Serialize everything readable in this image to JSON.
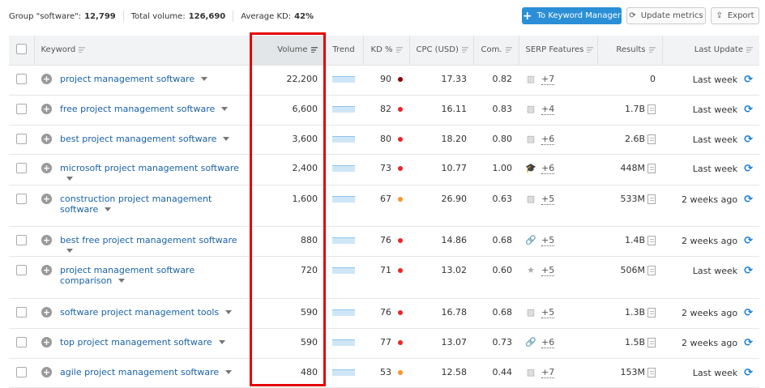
{
  "stats": {
    "group_label": "Group \"software\":",
    "group_value": "12,799",
    "total_label": "Total volume:",
    "total_value": "126,690",
    "kd_label": "Average KD:",
    "kd_value": "42%"
  },
  "toolbar": {
    "keyword_manager": "To Keyword Manager",
    "update_metrics": "Update metrics",
    "export": "Export"
  },
  "columns": {
    "keyword": "Keyword",
    "volume": "Volume",
    "trend": "Trend",
    "kd": "KD %",
    "cpc": "CPC (USD)",
    "com": "Com.",
    "serp": "SERP Features",
    "results": "Results",
    "last_update": "Last Update"
  },
  "colors": {
    "kd_very_hard": "#8b0000",
    "kd_hard": "#e8262b",
    "kd_medium": "#f7962d",
    "link": "#1a62a8",
    "primary": "#2a8fd6"
  },
  "rows": [
    {
      "keyword": "project management software",
      "volume": "22,200",
      "kd": "90",
      "kd_color": "#8b0000",
      "cpc": "17.33",
      "com": "0.82",
      "serp_icon": "carousel",
      "serp_more": "+7",
      "results": "0",
      "last_update": "Last week"
    },
    {
      "keyword": "free project management software",
      "volume": "6,600",
      "kd": "82",
      "kd_color": "#e8262b",
      "cpc": "16.11",
      "com": "0.83",
      "serp_icon": "image",
      "serp_more": "+4",
      "results": "1.7B",
      "last_update": "Last week"
    },
    {
      "keyword": "best project management software",
      "volume": "3,600",
      "kd": "80",
      "kd_color": "#e8262b",
      "cpc": "18.20",
      "com": "0.80",
      "serp_icon": "image",
      "serp_more": "+6",
      "results": "2.6B",
      "last_update": "Last week"
    },
    {
      "keyword": "microsoft project management software",
      "volume": "2,400",
      "kd": "73",
      "kd_color": "#e8262b",
      "cpc": "10.77",
      "com": "1.00",
      "serp_icon": "graduation-cap",
      "serp_more": "+6",
      "results": "448M",
      "last_update": "Last week"
    },
    {
      "keyword": "construction project management software",
      "volume": "1,600",
      "kd": "67",
      "kd_color": "#f7962d",
      "cpc": "26.90",
      "com": "0.63",
      "serp_icon": "image",
      "serp_more": "+5",
      "results": "533M",
      "last_update": "2 weeks ago"
    },
    {
      "keyword": "best free project management software",
      "volume": "880",
      "kd": "76",
      "kd_color": "#e8262b",
      "cpc": "14.86",
      "com": "0.68",
      "serp_icon": "link",
      "serp_more": "+5",
      "results": "1.4B",
      "last_update": "2 weeks ago"
    },
    {
      "keyword": "project management software comparison",
      "volume": "720",
      "kd": "71",
      "kd_color": "#e8262b",
      "cpc": "13.02",
      "com": "0.60",
      "serp_icon": "star",
      "serp_more": "+5",
      "results": "506M",
      "last_update": "Last week"
    },
    {
      "keyword": "software project management tools",
      "volume": "590",
      "kd": "76",
      "kd_color": "#e8262b",
      "cpc": "16.78",
      "com": "0.68",
      "serp_icon": "image",
      "serp_more": "+5",
      "results": "1.3B",
      "last_update": "2 weeks ago"
    },
    {
      "keyword": "top project management software",
      "volume": "590",
      "kd": "77",
      "kd_color": "#e8262b",
      "cpc": "13.07",
      "com": "0.73",
      "serp_icon": "link",
      "serp_more": "+6",
      "results": "1.5B",
      "last_update": "2 weeks ago"
    },
    {
      "keyword": "agile project management software",
      "volume": "480",
      "kd": "53",
      "kd_color": "#f7962d",
      "cpc": "12.58",
      "com": "0.44",
      "serp_icon": "image",
      "serp_more": "+7",
      "results": "153M",
      "last_update": "Last week"
    }
  ]
}
